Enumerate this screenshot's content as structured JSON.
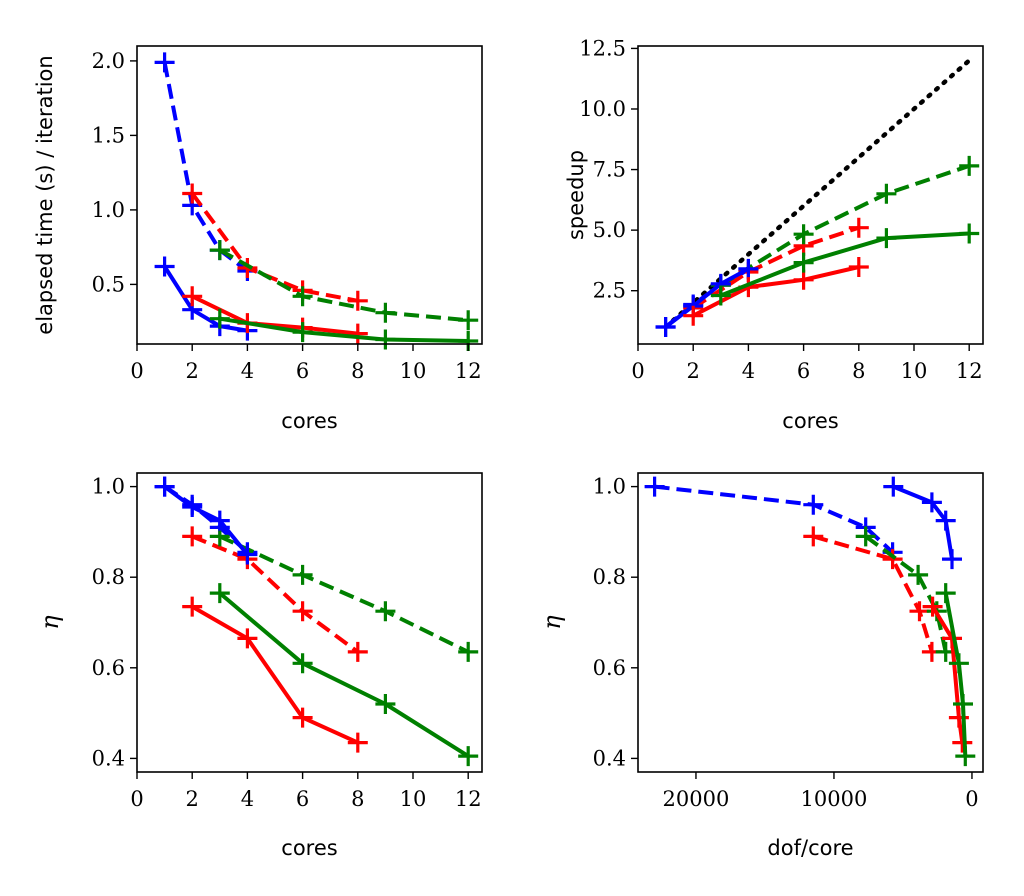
{
  "colors": {
    "blue": "#0000ff",
    "red": "#ff0000",
    "green": "#008000",
    "black": "#000000"
  },
  "chart_data": [
    {
      "type": "line",
      "xlabel": "cores",
      "ylabel": "elapsed time (s) / iteration",
      "xlim": [
        0,
        12.5
      ],
      "ylim": [
        0.1,
        2.1
      ],
      "xticks": [
        0,
        2,
        4,
        6,
        8,
        10,
        12
      ],
      "xtick_labels": [
        "0",
        "2",
        "4",
        "6",
        "8",
        "10",
        "12"
      ],
      "yticks": [
        0.5,
        1.0,
        1.5,
        2.0
      ],
      "ytick_labels": [
        "0.5",
        "1.0",
        "1.5",
        "2.0"
      ],
      "grid": false,
      "series": [
        {
          "color": "blue",
          "style": "dashed",
          "x": [
            1,
            2,
            3,
            4
          ],
          "y": [
            1.99,
            1.03,
            0.73,
            0.59
          ]
        },
        {
          "color": "red",
          "style": "dashed",
          "x": [
            2,
            4,
            6,
            8
          ],
          "y": [
            1.11,
            0.61,
            0.46,
            0.39
          ]
        },
        {
          "color": "green",
          "style": "dashed",
          "x": [
            3,
            6,
            9,
            12
          ],
          "y": [
            0.73,
            0.42,
            0.31,
            0.26
          ]
        },
        {
          "color": "blue",
          "style": "solid",
          "x": [
            1,
            2,
            3,
            4
          ],
          "y": [
            0.62,
            0.33,
            0.22,
            0.19
          ]
        },
        {
          "color": "red",
          "style": "solid",
          "x": [
            2,
            4,
            6,
            8
          ],
          "y": [
            0.42,
            0.24,
            0.21,
            0.17
          ]
        },
        {
          "color": "green",
          "style": "solid",
          "x": [
            3,
            6,
            9,
            12
          ],
          "y": [
            0.27,
            0.18,
            0.13,
            0.12
          ]
        }
      ]
    },
    {
      "type": "line",
      "xlabel": "cores",
      "ylabel": "speedup",
      "xlim": [
        0,
        12.5
      ],
      "ylim": [
        0.3,
        12.6
      ],
      "xticks": [
        0,
        2,
        4,
        6,
        8,
        10,
        12
      ],
      "xtick_labels": [
        "0",
        "2",
        "4",
        "6",
        "8",
        "10",
        "12"
      ],
      "yticks": [
        2.5,
        5.0,
        7.5,
        10.0,
        12.5
      ],
      "ytick_labels": [
        "2.5",
        "5.0",
        "7.5",
        "10.0",
        "12.5"
      ],
      "grid": false,
      "series": [
        {
          "color": "black",
          "style": "dotted",
          "marker": false,
          "x": [
            1,
            12
          ],
          "y": [
            1,
            12
          ]
        },
        {
          "color": "blue",
          "style": "dashed",
          "x": [
            1,
            2,
            3,
            4
          ],
          "y": [
            1.0,
            1.93,
            2.73,
            3.37
          ]
        },
        {
          "color": "red",
          "style": "dashed",
          "x": [
            2,
            4,
            6,
            8
          ],
          "y": [
            1.79,
            3.27,
            4.35,
            5.1
          ]
        },
        {
          "color": "green",
          "style": "dashed",
          "x": [
            3,
            6,
            9,
            12
          ],
          "y": [
            2.73,
            4.83,
            6.5,
            7.65
          ]
        },
        {
          "color": "blue",
          "style": "solid",
          "x": [
            1,
            2,
            3,
            4
          ],
          "y": [
            1.0,
            1.87,
            2.78,
            3.4
          ]
        },
        {
          "color": "red",
          "style": "solid",
          "x": [
            2,
            4,
            6,
            8
          ],
          "y": [
            1.47,
            2.65,
            2.95,
            3.48
          ]
        },
        {
          "color": "green",
          "style": "solid",
          "x": [
            3,
            6,
            9,
            12
          ],
          "y": [
            2.3,
            3.66,
            4.67,
            4.86
          ]
        }
      ]
    },
    {
      "type": "line",
      "xlabel": "cores",
      "ylabel": "η",
      "xlim": [
        0,
        12.5
      ],
      "ylim": [
        0.37,
        1.03
      ],
      "xticks": [
        0,
        2,
        4,
        6,
        8,
        10,
        12
      ],
      "xtick_labels": [
        "0",
        "2",
        "4",
        "6",
        "8",
        "10",
        "12"
      ],
      "yticks": [
        0.4,
        0.6,
        0.8,
        1.0
      ],
      "ytick_labels": [
        "0.4",
        "0.6",
        "0.8",
        "1.0"
      ],
      "grid": false,
      "series": [
        {
          "color": "blue",
          "style": "dashed",
          "x": [
            1,
            2,
            3,
            4
          ],
          "y": [
            1.0,
            0.96,
            0.91,
            0.855
          ]
        },
        {
          "color": "red",
          "style": "dashed",
          "x": [
            2,
            4,
            6,
            8
          ],
          "y": [
            0.89,
            0.84,
            0.725,
            0.635
          ]
        },
        {
          "color": "green",
          "style": "dashed",
          "x": [
            3,
            6,
            9,
            12
          ],
          "y": [
            0.89,
            0.805,
            0.725,
            0.635
          ]
        },
        {
          "color": "blue",
          "style": "solid",
          "x": [
            1,
            2,
            3,
            4
          ],
          "y": [
            1.0,
            0.955,
            0.925,
            0.85
          ]
        },
        {
          "color": "red",
          "style": "solid",
          "x": [
            2,
            4,
            6,
            8
          ],
          "y": [
            0.735,
            0.665,
            0.49,
            0.435
          ]
        },
        {
          "color": "green",
          "style": "solid",
          "x": [
            3,
            6,
            9,
            12
          ],
          "y": [
            0.765,
            0.61,
            0.52,
            0.405
          ]
        }
      ]
    },
    {
      "type": "line",
      "xlabel": "dof/core",
      "ylabel": "η",
      "xlim": [
        24200,
        -800
      ],
      "ylim": [
        0.37,
        1.03
      ],
      "xticks": [
        20000,
        10000,
        0
      ],
      "xtick_labels": [
        "20000",
        "10000",
        "0"
      ],
      "yticks": [
        0.4,
        0.6,
        0.8,
        1.0
      ],
      "ytick_labels": [
        "0.4",
        "0.6",
        "0.8",
        "1.0"
      ],
      "grid": false,
      "series": [
        {
          "color": "blue",
          "style": "dashed",
          "x": [
            23000,
            11500,
            7700,
            5750
          ],
          "y": [
            1.0,
            0.96,
            0.91,
            0.855
          ]
        },
        {
          "color": "red",
          "style": "dashed",
          "x": [
            11500,
            5750,
            3800,
            2900
          ],
          "y": [
            0.89,
            0.84,
            0.725,
            0.635
          ]
        },
        {
          "color": "green",
          "style": "dashed",
          "x": [
            7700,
            3900,
            2550,
            1900
          ],
          "y": [
            0.89,
            0.805,
            0.725,
            0.635
          ]
        },
        {
          "color": "blue",
          "style": "solid",
          "x": [
            5700,
            2900,
            1900,
            1450
          ],
          "y": [
            1.0,
            0.965,
            0.925,
            0.84
          ]
        },
        {
          "color": "red",
          "style": "solid",
          "x": [
            2850,
            1450,
            950,
            700
          ],
          "y": [
            0.735,
            0.665,
            0.49,
            0.435
          ]
        },
        {
          "color": "green",
          "style": "solid",
          "x": [
            1900,
            950,
            650,
            480
          ],
          "y": [
            0.765,
            0.61,
            0.52,
            0.405
          ]
        }
      ]
    }
  ]
}
